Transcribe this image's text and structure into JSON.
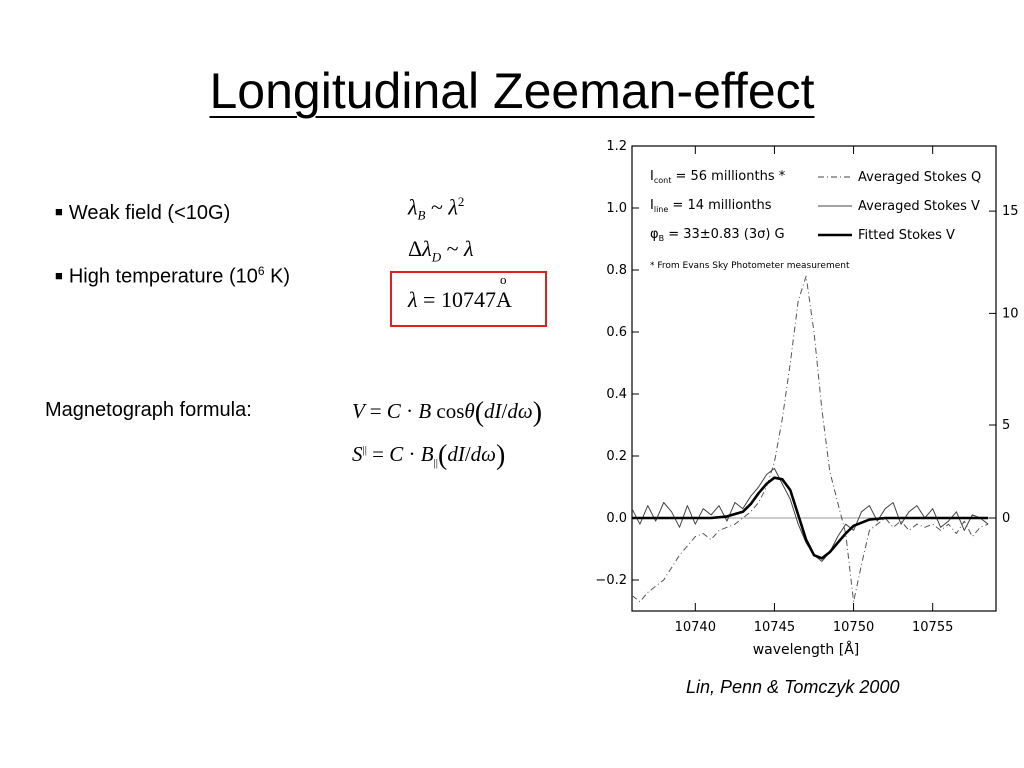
{
  "slide": {
    "title": "Longitudinal Zeeman-effect",
    "bullets": {
      "weak_field": "Weak field (<10G)",
      "high_temp_pre": "High temperature (10",
      "high_temp_sup": "6",
      "high_temp_post": " K)"
    },
    "relations": {
      "zeeman_scaling": "λB ~ λ2",
      "doppler_scaling": "ΔλD ~ λ",
      "wavelength": "λ = 10747 Å"
    },
    "magnetograph_label": "Magnetograph formula:",
    "formulas": {
      "stokes_v": "V = C · B cosθ (dI/dω)",
      "stokes_parallel": "S|| = C · B|| (dI/dω)"
    },
    "citation": "Lin, Penn & Tomczyk 2000"
  },
  "chart_data": {
    "type": "line",
    "xlabel": "wavelength [Å]",
    "xlim": [
      10736,
      10759
    ],
    "ylim": [
      -0.3,
      1.2
    ],
    "y2lim": [
      -0.3,
      1.2
    ],
    "x_ticks": [
      "10740",
      "10745",
      "10750",
      "10755"
    ],
    "x_tick_values": [
      10740,
      10745,
      10750,
      10755
    ],
    "y_ticks": [
      "−0.2",
      "0.0",
      "0.2",
      "0.4",
      "0.6",
      "0.8",
      "1.0",
      "1.2"
    ],
    "y_tick_values": [
      -0.2,
      0,
      0.2,
      0.4,
      0.6,
      0.8,
      1.0,
      1.2
    ],
    "y2_ticks": [
      "0",
      "5",
      "10",
      "15"
    ],
    "y2_tick_values": [
      0,
      0.3,
      0.66,
      0.99
    ],
    "annotations": {
      "icont_a": "I",
      "icont_b": "cont",
      "icont_c": " = 56 millionths *",
      "iline_a": "I",
      "iline_b": "line",
      "iline_c": " = 14 millionths",
      "phi_a": "φ",
      "phi_b": "B",
      "phi_c": " = 33±0.83 (3σ) G",
      "note": "* From Evans Sky Photometer measurement"
    },
    "legend": {
      "position": "top-right",
      "entries": [
        "Averaged Stokes Q",
        "Averaged Stokes V",
        "Fitted Stokes V"
      ]
    },
    "series": [
      {
        "name": "Averaged Stokes Q",
        "style": "dash-dot",
        "x": [
          10736.0,
          10736.5,
          10737.0,
          10737.5,
          10738.0,
          10738.5,
          10739.0,
          10739.5,
          10740.0,
          10740.5,
          10741.0,
          10741.5,
          10742.0,
          10742.5,
          10743.0,
          10743.5,
          10744.0,
          10744.5,
          10745.0,
          10745.5,
          10746.0,
          10746.5,
          10747.0,
          10747.5,
          10748.0,
          10748.5,
          10749.0,
          10749.5,
          10750.0,
          10750.5,
          10751.0,
          10751.5,
          10752.0,
          10752.5,
          10753.0,
          10753.5,
          10754.0,
          10754.5,
          10755.0,
          10755.5,
          10756.0,
          10756.5,
          10757.0,
          10757.5,
          10758.0,
          10758.5
        ],
        "y": [
          -0.25,
          -0.27,
          -0.24,
          -0.22,
          -0.2,
          -0.16,
          -0.12,
          -0.09,
          -0.06,
          -0.05,
          -0.07,
          -0.04,
          -0.03,
          -0.02,
          0.0,
          0.02,
          0.05,
          0.1,
          0.18,
          0.32,
          0.5,
          0.7,
          0.78,
          0.6,
          0.35,
          0.15,
          0.05,
          -0.05,
          -0.27,
          -0.15,
          -0.04,
          -0.02,
          0.0,
          -0.03,
          -0.01,
          -0.04,
          -0.02,
          -0.03,
          -0.02,
          -0.04,
          -0.02,
          -0.05,
          -0.01,
          -0.06,
          -0.03,
          -0.02
        ]
      },
      {
        "name": "Averaged Stokes V",
        "style": "thin",
        "x": [
          10736.0,
          10736.5,
          10737.0,
          10737.5,
          10738.0,
          10738.5,
          10739.0,
          10739.5,
          10740.0,
          10740.5,
          10741.0,
          10741.5,
          10742.0,
          10742.5,
          10743.0,
          10743.5,
          10744.0,
          10744.5,
          10745.0,
          10745.5,
          10746.0,
          10746.5,
          10747.0,
          10747.5,
          10748.0,
          10748.5,
          10749.0,
          10749.5,
          10750.0,
          10750.5,
          10751.0,
          10751.5,
          10752.0,
          10752.5,
          10753.0,
          10753.5,
          10754.0,
          10754.5,
          10755.0,
          10755.5,
          10756.0,
          10756.5,
          10757.0,
          10757.5,
          10758.0,
          10758.5
        ],
        "y": [
          0.03,
          -0.02,
          0.04,
          -0.01,
          0.05,
          0.02,
          -0.03,
          0.04,
          -0.02,
          0.03,
          0.01,
          0.04,
          -0.01,
          0.05,
          0.03,
          0.07,
          0.1,
          0.14,
          0.16,
          0.11,
          0.06,
          -0.02,
          -0.08,
          -0.12,
          -0.14,
          -0.11,
          -0.06,
          -0.02,
          -0.04,
          0.02,
          0.04,
          -0.01,
          0.03,
          0.05,
          -0.02,
          0.02,
          0.04,
          0.0,
          0.03,
          -0.03,
          -0.01,
          0.02,
          -0.04,
          0.01,
          0.0,
          -0.02
        ]
      },
      {
        "name": "Fitted Stokes V",
        "style": "thick",
        "x": [
          10736.0,
          10741.0,
          10742.0,
          10743.0,
          10743.5,
          10744.0,
          10744.5,
          10745.0,
          10745.5,
          10746.0,
          10746.5,
          10747.0,
          10747.5,
          10748.0,
          10748.5,
          10749.0,
          10749.5,
          10750.0,
          10751.0,
          10752.0,
          10758.5
        ],
        "y": [
          0.0,
          0.0,
          0.005,
          0.02,
          0.045,
          0.08,
          0.11,
          0.13,
          0.125,
          0.09,
          0.01,
          -0.07,
          -0.12,
          -0.13,
          -0.11,
          -0.08,
          -0.05,
          -0.025,
          -0.005,
          0.0,
          0.0
        ]
      }
    ]
  }
}
